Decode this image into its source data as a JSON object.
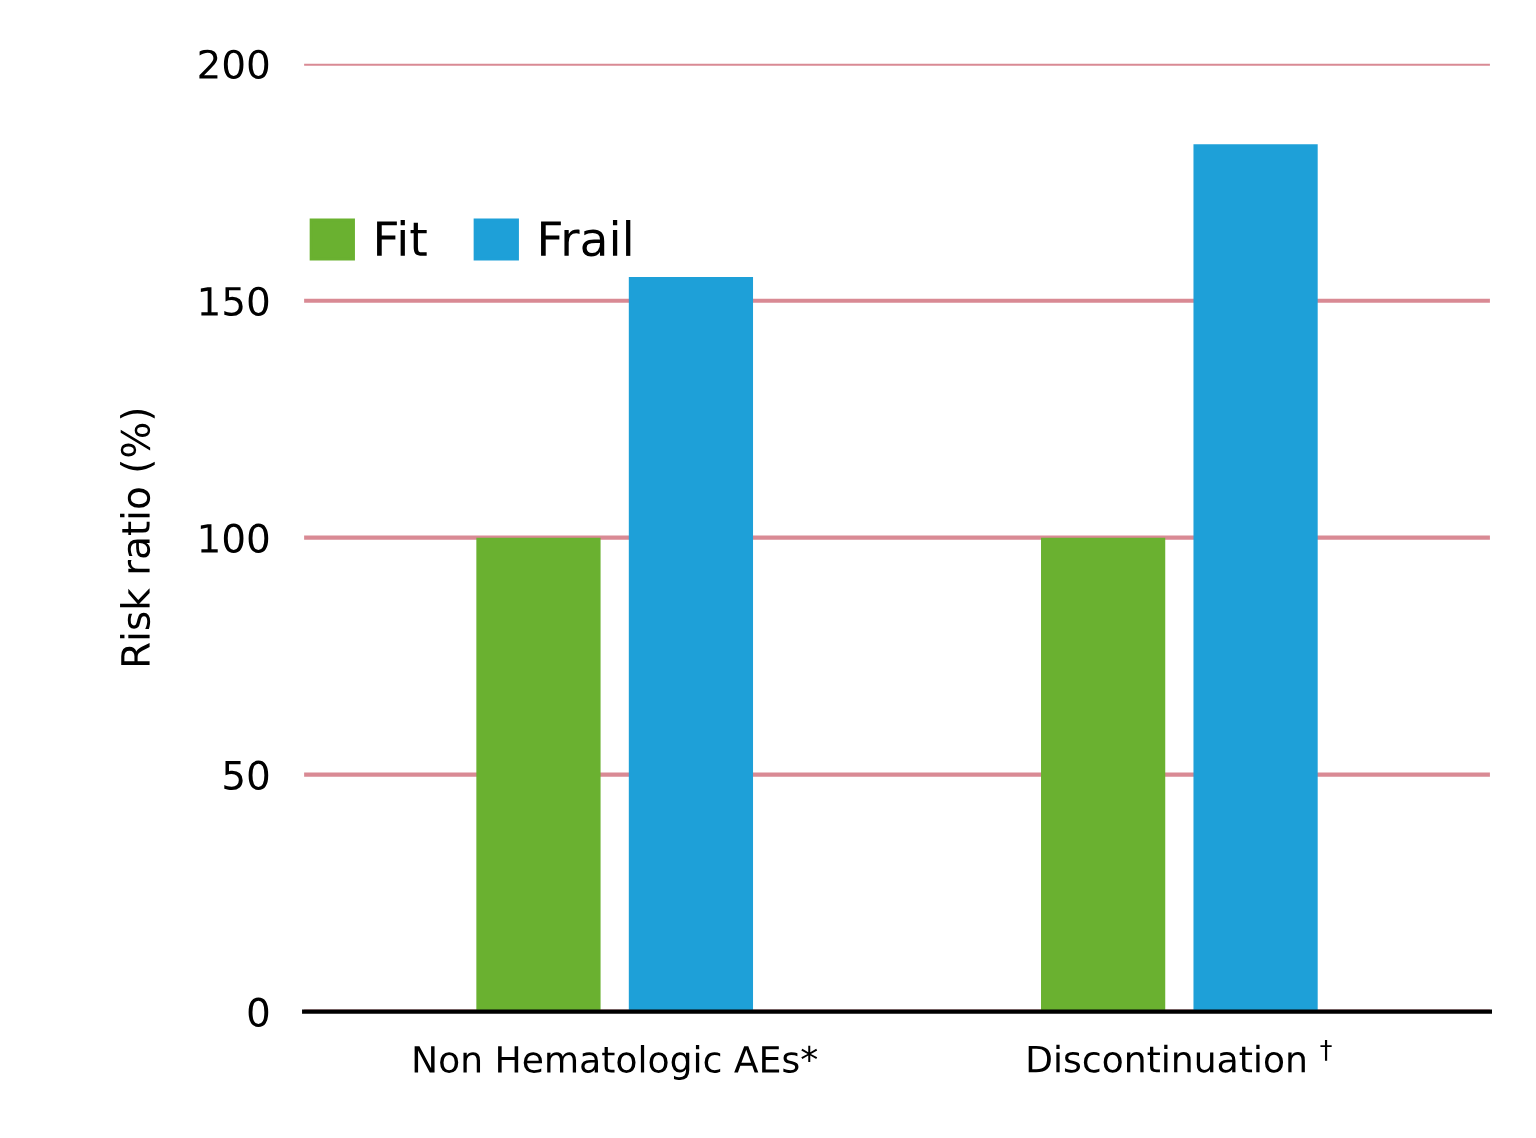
{
  "chart_data": {
    "type": "bar",
    "ylabel": "Risk ratio (%)",
    "categories": [
      "Non Hematologic AEs*",
      "Discontinuation $^{†}$"
    ],
    "series": [
      {
        "name": "Fit",
        "color": "#6ab130",
        "values": [
          100,
          100
        ]
      },
      {
        "name": "Frail",
        "color": "#1ea0d8",
        "values": [
          155,
          183
        ]
      }
    ],
    "ylim": [
      0,
      200
    ],
    "yticks": [
      0,
      50,
      100,
      150,
      200
    ],
    "grid": "y",
    "legend": "top left"
  }
}
